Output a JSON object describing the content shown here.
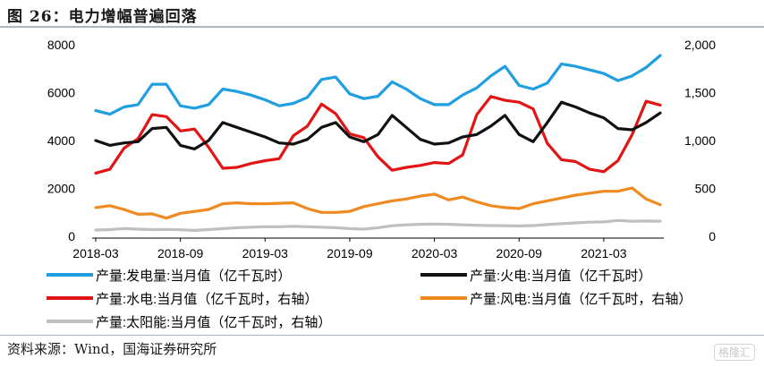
{
  "figure_title": "图 26：电力增幅普遍回落",
  "source": "资料来源：Wind，国海证券研究所",
  "watermark": "格隆汇",
  "chart_data": {
    "type": "line",
    "x": [
      "2018-03",
      "2018-04",
      "2018-05",
      "2018-06",
      "2018-07",
      "2018-08",
      "2018-09",
      "2018-10",
      "2018-11",
      "2018-12",
      "2019-01",
      "2019-02",
      "2019-03",
      "2019-04",
      "2019-05",
      "2019-06",
      "2019-07",
      "2019-08",
      "2019-09",
      "2019-10",
      "2019-11",
      "2019-12",
      "2020-01",
      "2020-02",
      "2020-03",
      "2020-04",
      "2020-05",
      "2020-06",
      "2020-07",
      "2020-08",
      "2020-09",
      "2020-10",
      "2020-11",
      "2020-12",
      "2021-01",
      "2021-02",
      "2021-03",
      "2021-04",
      "2021-05",
      "2021-06",
      "2021-07"
    ],
    "x_tick_labels": [
      "2018-03",
      "2018-09",
      "2019-03",
      "2019-09",
      "2020-03",
      "2020-09",
      "2021-03"
    ],
    "ylim_left": [
      0,
      8000
    ],
    "ylim_right": [
      0,
      2000
    ],
    "y_left_ticks": [
      "0",
      "2000",
      "4000",
      "6000",
      "8000"
    ],
    "y_right_ticks": [
      "0",
      "500",
      "1,000",
      "1,500",
      "2,000"
    ],
    "grid": false,
    "legend_position": "bottom",
    "series": [
      {
        "name": "产量:发电量:当月值（亿千瓦时）",
        "axis": "left",
        "color": "#1f9ee0",
        "values": [
          5250,
          5100,
          5400,
          5500,
          6350,
          6350,
          5450,
          5350,
          5500,
          6150,
          6050,
          5900,
          5700,
          5450,
          5550,
          5800,
          6550,
          6650,
          5950,
          5750,
          5850,
          6450,
          6150,
          5750,
          5500,
          5500,
          5900,
          6200,
          6700,
          7100,
          6300,
          6150,
          6400,
          7200,
          7100,
          6950,
          6800,
          6500,
          6700,
          7050,
          7550
        ]
      },
      {
        "name": "产量:火电:当月值（亿千瓦时）",
        "axis": "left",
        "color": "#111111",
        "values": [
          4000,
          3800,
          3900,
          3950,
          4500,
          4550,
          3800,
          3650,
          4000,
          4750,
          4550,
          4350,
          4150,
          3900,
          3850,
          4050,
          4550,
          4750,
          4150,
          3950,
          4250,
          5050,
          4550,
          4050,
          3850,
          3900,
          4150,
          4250,
          4600,
          5050,
          4250,
          3950,
          4750,
          5600,
          5400,
          5150,
          4950,
          4500,
          4450,
          4750,
          5150
        ]
      },
      {
        "name": "产量:水电:当月值（亿千瓦时，右轴）",
        "axis": "right",
        "color": "#e31414",
        "values": [
          660,
          700,
          920,
          1020,
          1270,
          1250,
          1100,
          1120,
          930,
          710,
          720,
          760,
          790,
          810,
          1050,
          1150,
          1380,
          1280,
          1070,
          1030,
          830,
          690,
          720,
          740,
          770,
          760,
          850,
          1270,
          1460,
          1420,
          1400,
          1330,
          970,
          800,
          780,
          700,
          675,
          790,
          1060,
          1410,
          1370
        ]
      },
      {
        "name": "产量:风电:当月值（亿千瓦时，右轴）",
        "axis": "right",
        "color": "#ef8a20",
        "values": [
          300,
          320,
          280,
          230,
          235,
          190,
          240,
          260,
          280,
          340,
          350,
          340,
          340,
          345,
          350,
          290,
          250,
          250,
          260,
          310,
          340,
          370,
          390,
          420,
          440,
          380,
          410,
          360,
          320,
          300,
          290,
          340,
          370,
          400,
          430,
          450,
          470,
          470,
          505,
          390,
          330
        ]
      },
      {
        "name": "产量:太阳能:当月值（亿千瓦时，右轴）",
        "axis": "right",
        "color": "#bfbfbf",
        "values": [
          65,
          70,
          80,
          75,
          70,
          72,
          68,
          62,
          70,
          80,
          90,
          95,
          100,
          100,
          105,
          100,
          95,
          90,
          80,
          75,
          90,
          110,
          120,
          125,
          128,
          125,
          120,
          115,
          112,
          110,
          108,
          112,
          122,
          132,
          140,
          148,
          150,
          165,
          158,
          160,
          158
        ]
      }
    ]
  }
}
